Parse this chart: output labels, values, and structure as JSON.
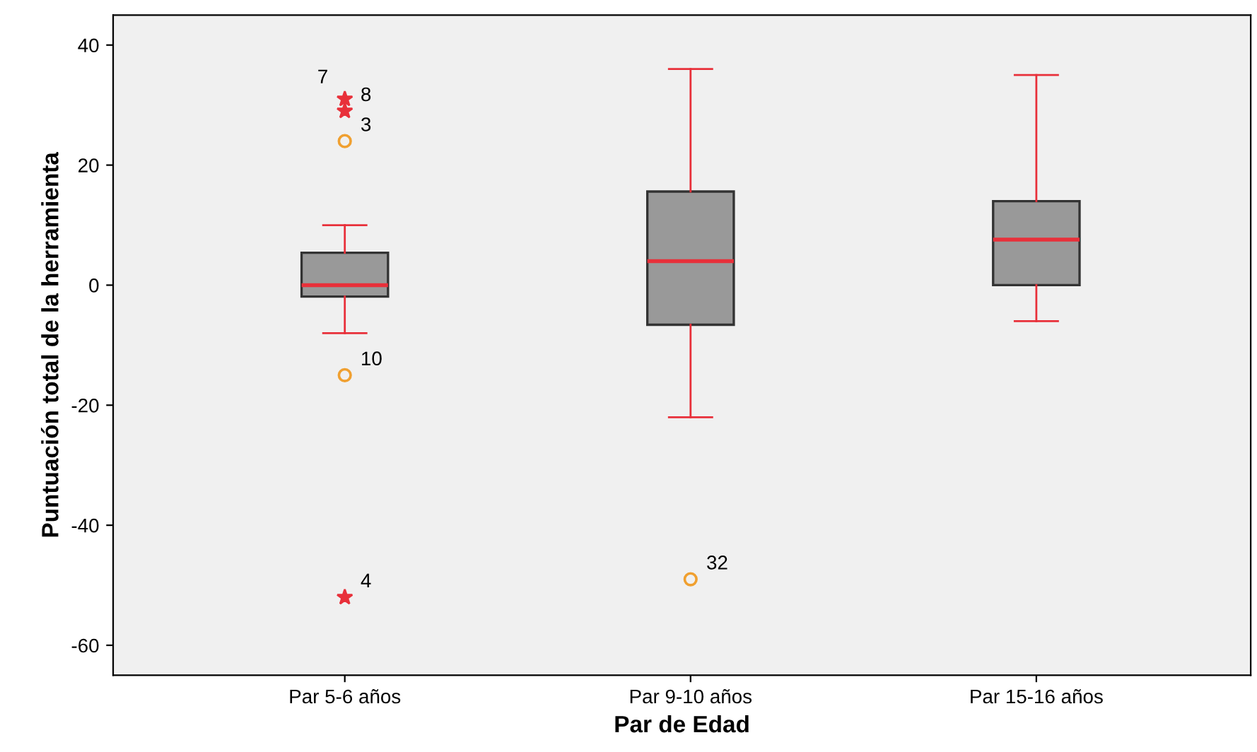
{
  "chart_data": {
    "type": "box",
    "xlabel": "Par de Edad",
    "ylabel": "Puntuación total de la herramienta",
    "categories": [
      "Par 5-6 años",
      "Par 9-10 años",
      "Par 15-16 años"
    ],
    "color": "#999999",
    "boxes": [
      {
        "low": -8,
        "q1": -1.9,
        "median": 0,
        "q3": 5.4,
        "high": 10,
        "outliers": [
          24,
          29,
          31,
          -15,
          -52
        ]
      },
      {
        "low": -22,
        "q1": -6.6,
        "median": 4,
        "q3": 15.6,
        "high": 36,
        "outliers": [
          -49
        ]
      },
      {
        "low": -6,
        "q1": 0,
        "median": 7.6,
        "q3": 14,
        "high": 35
      }
    ],
    "annotations": [
      "3",
      "8",
      "7",
      "10",
      "4",
      "32"
    ],
    "ylim": [
      -65,
      45
    ],
    "yticks": [
      -60,
      -40,
      -20,
      0,
      20,
      40
    ],
    "grid": false
  }
}
